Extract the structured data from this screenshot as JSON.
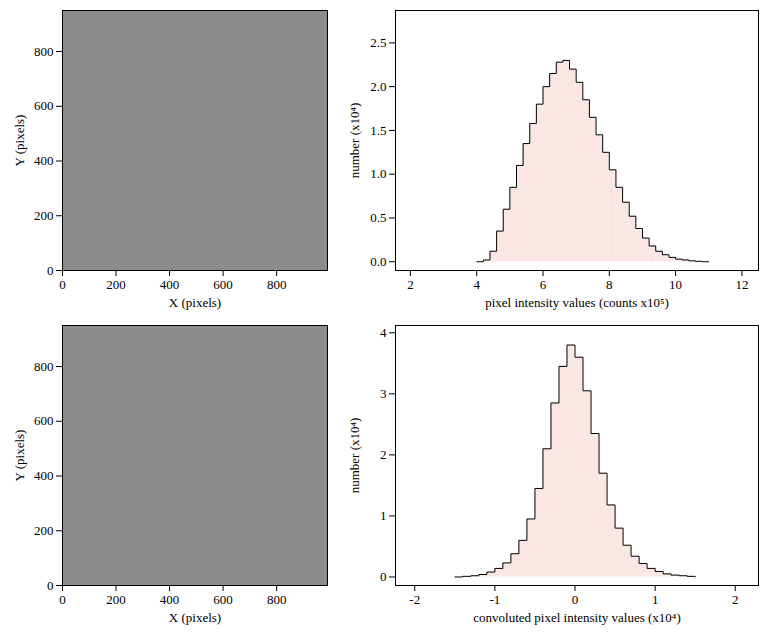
{
  "chart_data": [
    {
      "type": "image",
      "xlabel": "X (pixels)",
      "ylabel": "Y (pixels)",
      "xlim": [
        0,
        990
      ],
      "ylim": [
        0,
        950
      ],
      "xticks": [
        0,
        200,
        400,
        600,
        800
      ],
      "yticks": [
        0,
        200,
        400,
        600,
        800
      ]
    },
    {
      "type": "histogram",
      "xlabel": "pixel intensity values (counts x10⁵)",
      "ylabel": "number (x10⁴)",
      "bins": [
        4.0,
        4.2,
        4.4,
        4.6,
        4.8,
        5.0,
        5.2,
        5.4,
        5.6,
        5.8,
        6.0,
        6.2,
        6.4,
        6.6,
        6.8,
        7.0,
        7.2,
        7.4,
        7.6,
        7.8,
        8.0,
        8.2,
        8.4,
        8.6,
        8.8,
        9.0,
        9.2,
        9.4,
        9.6,
        9.8,
        10.0,
        10.2,
        10.4,
        10.6,
        10.8,
        11.0
      ],
      "values": [
        0.0,
        0.02,
        0.12,
        0.35,
        0.6,
        0.85,
        1.1,
        1.35,
        1.58,
        1.8,
        2.0,
        2.15,
        2.28,
        2.3,
        2.2,
        2.05,
        1.85,
        1.65,
        1.45,
        1.25,
        1.05,
        0.85,
        0.68,
        0.52,
        0.38,
        0.27,
        0.18,
        0.12,
        0.08,
        0.05,
        0.03,
        0.02,
        0.01,
        0.005,
        0.0
      ],
      "color": "#fae6e2",
      "xlim": [
        1.55,
        12.5
      ],
      "ylim": [
        -0.1,
        2.87
      ],
      "xticks": [
        2,
        4,
        6,
        8,
        10,
        12
      ],
      "yticks": [
        {
          "value": 0,
          "label": "0.0"
        },
        {
          "value": 0.5,
          "label": "0.5"
        },
        {
          "value": 1,
          "label": "1.0"
        },
        {
          "value": 1.5,
          "label": "1.5"
        },
        {
          "value": 2,
          "label": "2.0"
        },
        {
          "value": 2.5,
          "label": "2.5"
        }
      ]
    },
    {
      "type": "image",
      "xlabel": "X (pixels)",
      "ylabel": "Y (pixels)",
      "xlim": [
        0,
        990
      ],
      "ylim": [
        0,
        950
      ],
      "xticks": [
        0,
        200,
        400,
        600,
        800
      ],
      "yticks": [
        0,
        200,
        400,
        600,
        800
      ]
    },
    {
      "type": "histogram",
      "xlabel": "convoluted pixel intensity values (x10⁴)",
      "ylabel": "number (x10⁴)",
      "bins": [
        -1.5,
        -1.4,
        -1.3,
        -1.2,
        -1.1,
        -1.0,
        -0.9,
        -0.8,
        -0.7,
        -0.6,
        -0.5,
        -0.4,
        -0.3,
        -0.2,
        -0.1,
        0.0,
        0.1,
        0.2,
        0.3,
        0.4,
        0.5,
        0.6,
        0.7,
        0.8,
        0.9,
        1.0,
        1.1,
        1.2,
        1.3,
        1.4,
        1.5
      ],
      "values": [
        0.0,
        0.01,
        0.02,
        0.04,
        0.08,
        0.14,
        0.23,
        0.38,
        0.6,
        0.95,
        1.45,
        2.1,
        2.85,
        3.45,
        3.8,
        3.6,
        3.05,
        2.35,
        1.7,
        1.18,
        0.8,
        0.52,
        0.34,
        0.22,
        0.14,
        0.09,
        0.05,
        0.03,
        0.02,
        0.01
      ],
      "color": "#fae6e2",
      "xlim": [
        -2.24,
        2.29
      ],
      "ylim": [
        -0.14,
        4.12
      ],
      "xticks": [
        -2,
        -1,
        0,
        1,
        2
      ],
      "yticks": [
        0,
        1,
        2,
        3,
        4
      ]
    }
  ]
}
